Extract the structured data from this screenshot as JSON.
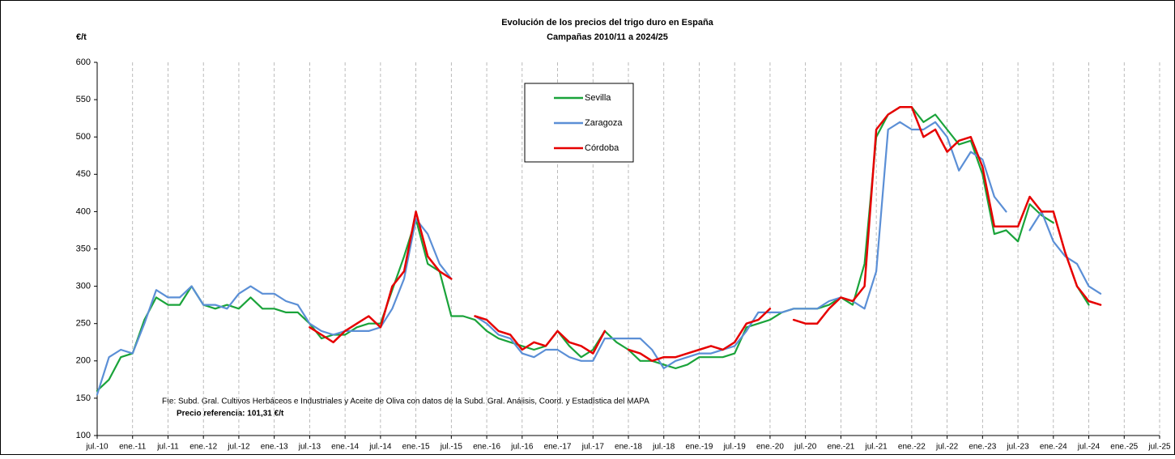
{
  "chart_data": {
    "type": "line",
    "title": "Evolución de los precios del trigo duro en España",
    "subtitle": "Campañas 2010/11 a 2024/25",
    "y_label": "€/t",
    "source": "Fte: Subd. Gral. Cultivos Herbáceos e Industriales y Aceite de Oliva con datos de la Subd. Gral. Análisis, Coord. y Estadística del MAPA",
    "reference_note": "Precio referencia: 101,31 €/t",
    "categories": [
      "jul.-10",
      null,
      null,
      "ene.-11",
      null,
      null,
      "jul.-11",
      null,
      null,
      "ene.-12",
      null,
      null,
      "jul.-12",
      null,
      null,
      "ene.-13",
      null,
      null,
      "jul.-13",
      null,
      null,
      "ene.-14",
      null,
      null,
      "jul.-14",
      null,
      null,
      "ene.-15",
      null,
      null,
      "jul.-15",
      null,
      null,
      "ene.-16",
      null,
      null,
      "jul.-16",
      null,
      null,
      "ene.-17",
      null,
      null,
      "jul.-17",
      null,
      null,
      "ene.-18",
      null,
      null,
      "jul.-18",
      null,
      null,
      "ene.-19",
      null,
      null,
      "jul.-19",
      null,
      null,
      "ene.-20",
      null,
      null,
      "jul.-20",
      null,
      null,
      "ene.-21",
      null,
      null,
      "jul.-21",
      null,
      null,
      "ene.-22",
      null,
      null,
      "jul.-22",
      null,
      null,
      "ene.-23",
      null,
      null,
      "jul.-23",
      null,
      null,
      "ene.-24",
      null,
      null,
      "jul.-24",
      null,
      null,
      "ene.-25",
      null,
      null,
      "jul.-25"
    ],
    "series": [
      {
        "name": "Sevilla",
        "color": "#1aa33a",
        "values": [
          160,
          175,
          205,
          210,
          255,
          285,
          275,
          275,
          300,
          275,
          270,
          275,
          270,
          285,
          270,
          270,
          265,
          265,
          250,
          230,
          235,
          235,
          245,
          250,
          250,
          295,
          340,
          390,
          330,
          320,
          260,
          260,
          255,
          240,
          230,
          225,
          220,
          215,
          220,
          240,
          220,
          205,
          215,
          240,
          225,
          215,
          200,
          200,
          195,
          190,
          195,
          205,
          205,
          205,
          210,
          245,
          250,
          255,
          265,
          270,
          270,
          270,
          275,
          285,
          275,
          330,
          500,
          530,
          540,
          540,
          520,
          530,
          510,
          490,
          495,
          450,
          370,
          375,
          360,
          410,
          395,
          385,
          null,
          300,
          275,
          null,
          null,
          null,
          null,
          null,
          null
        ]
      },
      {
        "name": "Zaragoza",
        "color": "#5b8fd6",
        "values": [
          155,
          205,
          215,
          210,
          250,
          295,
          285,
          285,
          300,
          275,
          275,
          270,
          290,
          300,
          290,
          290,
          280,
          275,
          250,
          240,
          235,
          240,
          240,
          240,
          245,
          270,
          310,
          390,
          370,
          330,
          310,
          null,
          260,
          250,
          235,
          230,
          210,
          205,
          215,
          215,
          205,
          200,
          200,
          230,
          230,
          230,
          230,
          215,
          190,
          200,
          205,
          210,
          210,
          215,
          220,
          240,
          265,
          265,
          265,
          270,
          270,
          270,
          280,
          285,
          280,
          270,
          320,
          510,
          520,
          510,
          510,
          520,
          500,
          455,
          480,
          470,
          420,
          400,
          null,
          375,
          400,
          360,
          340,
          330,
          300,
          290,
          null,
          null,
          null,
          null,
          null
        ]
      },
      {
        "name": "Córdoba",
        "color": "#e60000",
        "values": [
          null,
          null,
          null,
          null,
          null,
          null,
          null,
          null,
          null,
          null,
          null,
          null,
          null,
          null,
          null,
          null,
          null,
          null,
          245,
          235,
          225,
          240,
          250,
          260,
          245,
          300,
          320,
          400,
          340,
          320,
          310,
          null,
          260,
          255,
          240,
          235,
          215,
          225,
          220,
          240,
          225,
          220,
          210,
          240,
          null,
          215,
          210,
          200,
          205,
          205,
          210,
          215,
          220,
          215,
          225,
          250,
          255,
          270,
          null,
          255,
          250,
          250,
          270,
          285,
          280,
          300,
          510,
          530,
          540,
          540,
          500,
          510,
          480,
          495,
          500,
          460,
          380,
          380,
          380,
          420,
          400,
          400,
          345,
          300,
          280,
          275,
          null,
          null,
          null,
          null,
          null
        ]
      }
    ],
    "ylim": [
      100,
      600
    ],
    "yticks": [
      100,
      150,
      200,
      250,
      300,
      350,
      400,
      450,
      500,
      550,
      600
    ],
    "grid": "x",
    "legend": "top-center"
  }
}
